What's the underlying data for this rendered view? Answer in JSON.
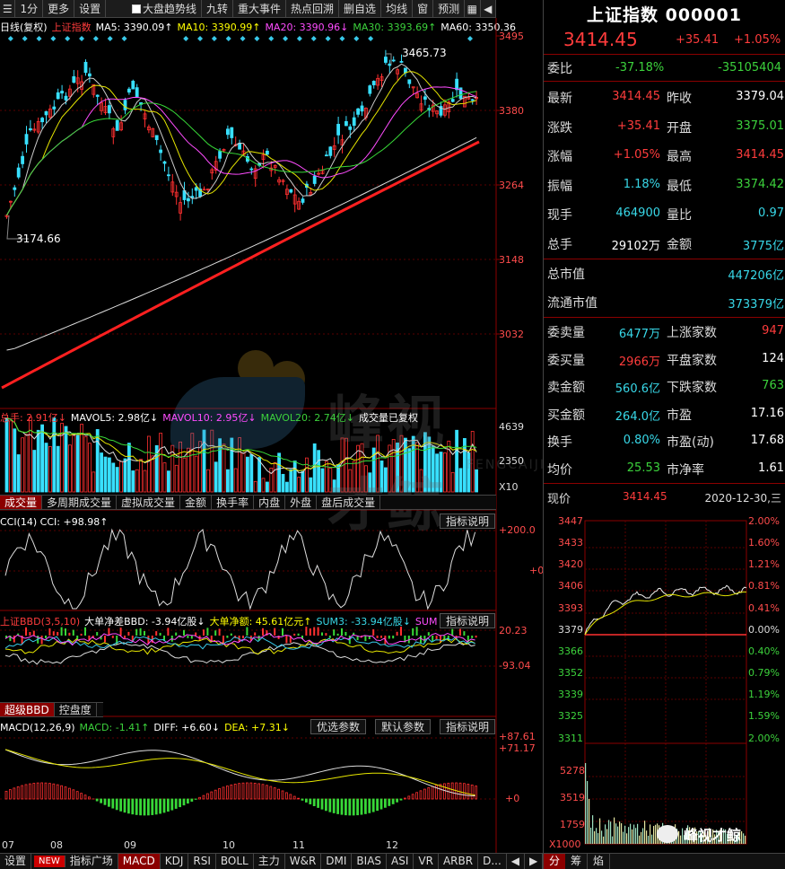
{
  "toolbar": {
    "items": [
      "1分",
      "更多",
      "设置",
      "大盘趋势线",
      "九转",
      "重大事件",
      "热点回溯",
      "删自选",
      "均线",
      "窗",
      "预测"
    ]
  },
  "main_legend": {
    "label": "日线(复权)",
    "name": "上证指数",
    "ma5": "MA5: 3390.09↑",
    "ma10": "MA10: 3390.99↑",
    "ma20": "MA20: 3390.96↓",
    "ma30": "MA30: 3393.69↑",
    "ma60": "MA60: 3350.36"
  },
  "price_axis": [
    "3495",
    "3380",
    "3264",
    "3148",
    "3032"
  ],
  "annot": {
    "high": "3465.73",
    "low": "3174.66"
  },
  "vol_legend": {
    "total": "总手: 2.91亿↓",
    "mavol5": "MAVOL5: 2.98亿↓",
    "mavol10": "MAVOL10: 2.95亿↓",
    "mavol20": "MAVOL20: 2.74亿↓",
    "note": "成交量已复权"
  },
  "vol_axis": [
    "4639",
    "2350",
    "X10"
  ],
  "vol_tabs": [
    "成交量",
    "多周期成交量",
    "虚拟成交量",
    "金额",
    "换手率",
    "内盘",
    "外盘",
    "盘后成交量"
  ],
  "cci": {
    "legend": "CCI(14)  CCI: +98.98↑",
    "btn": "指标说明",
    "axis": [
      "+200.0",
      "+0"
    ]
  },
  "bbd": {
    "name": "上证BBD(3,5,10)",
    "net": "大单净差BBD: -3.94亿股↓",
    "amount": "大单净额: 45.61亿元↑",
    "sum": "SUM3: -33.94亿股↓",
    "cut": "SUM",
    "btn": "指标说明",
    "axis": [
      "20.23",
      "-93.04"
    ]
  },
  "bbd_tabs": [
    "超级BBD",
    "控盘度"
  ],
  "macd": {
    "name": "MACD(12,26,9)",
    "macd": "MACD: -1.41↑",
    "diff": "DIFF: +6.60↓",
    "dea": "DEA: +7.31↓",
    "btn1": "优选参数",
    "btn2": "默认参数",
    "btn3": "指标说明",
    "axis": [
      "+87.61",
      "+71.17",
      "+0"
    ]
  },
  "x_dates": [
    "07",
    "08",
    "09",
    "10",
    "11",
    "12"
  ],
  "bottom_tabs": [
    "设置",
    "NEW",
    "指标广场",
    "MACD",
    "KDJ",
    "RSI",
    "BOLL",
    "主力",
    "W&R",
    "DMI",
    "BIAS",
    "ASI",
    "VR",
    "ARBR",
    "D..."
  ],
  "quote": {
    "title": "上证指数 000001",
    "price": "3414.45",
    "change": "+35.41",
    "pct": "+1.05%",
    "ratio_label": "委比",
    "ratio_pct": "-37.18%",
    "ratio_diff": "-35105404",
    "rows": [
      {
        "l1": "最新",
        "v1": "3414.45",
        "c1": "red",
        "l2": "昨收",
        "v2": "3379.04",
        "c2": "wht"
      },
      {
        "l1": "涨跌",
        "v1": "+35.41",
        "c1": "red",
        "l2": "开盘",
        "v2": "3375.01",
        "c2": "grn"
      },
      {
        "l1": "涨幅",
        "v1": "+1.05%",
        "c1": "red",
        "l2": "最高",
        "v2": "3414.45",
        "c2": "red"
      },
      {
        "l1": "振幅",
        "v1": "1.18%",
        "c1": "cyn",
        "l2": "最低",
        "v2": "3374.42",
        "c2": "grn"
      },
      {
        "l1": "现手",
        "v1": "464900",
        "c1": "cyn",
        "l2": "量比",
        "v2": "0.97",
        "c2": "cyn"
      },
      {
        "l1": "总手",
        "v1": "29102万",
        "c1": "wht",
        "l2": "金额",
        "v2": "3775亿",
        "c2": "cyn"
      }
    ],
    "mcap": [
      {
        "l": "总市值",
        "v": "447206亿"
      },
      {
        "l": "流通市值",
        "v": "373379亿"
      }
    ],
    "rows2": [
      {
        "l1": "委卖量",
        "v1": "6477万",
        "c1": "cyn",
        "l2": "上涨家数",
        "v2": "947",
        "c2": "red"
      },
      {
        "l1": "委买量",
        "v1": "2966万",
        "c1": "red",
        "l2": "平盘家数",
        "v2": "124",
        "c2": "wht"
      },
      {
        "l1": "卖金额",
        "v1": "560.6亿",
        "c1": "cyn",
        "l2": "下跌家数",
        "v2": "763",
        "c2": "grn"
      },
      {
        "l1": "买金额",
        "v1": "264.0亿",
        "c1": "cyn",
        "l2": "市盈",
        "v2": "17.16",
        "c2": "wht"
      },
      {
        "l1": "换手",
        "v1": "0.80%",
        "c1": "cyn",
        "l2": "市盈(动)",
        "v2": "17.68",
        "c2": "wht"
      },
      {
        "l1": "均价",
        "v1": "25.53",
        "c1": "grn",
        "l2": "市净率",
        "v2": "1.61",
        "c2": "wht"
      }
    ],
    "now_label": "现价",
    "now_value": "3414.45",
    "date": "2020-12-30,三"
  },
  "intraday": {
    "left_axis": [
      "3447",
      "3433",
      "3420",
      "3406",
      "3393",
      "3379",
      "3366",
      "3352",
      "3339",
      "3325",
      "3311"
    ],
    "right_axis": [
      "2.00%",
      "1.60%",
      "1.21%",
      "0.81%",
      "0.41%",
      "0.00%",
      "0.40%",
      "0.79%",
      "1.19%",
      "1.59%",
      "2.00%"
    ],
    "vol_axis": [
      "5278",
      "3519",
      "1759",
      "X1000"
    ],
    "tabs": [
      "分",
      "筹",
      "焰"
    ]
  },
  "watermark": {
    "text": "峰视才鲸",
    "sub": "FENGCAIJING",
    "logo": "峰视才鲸"
  }
}
